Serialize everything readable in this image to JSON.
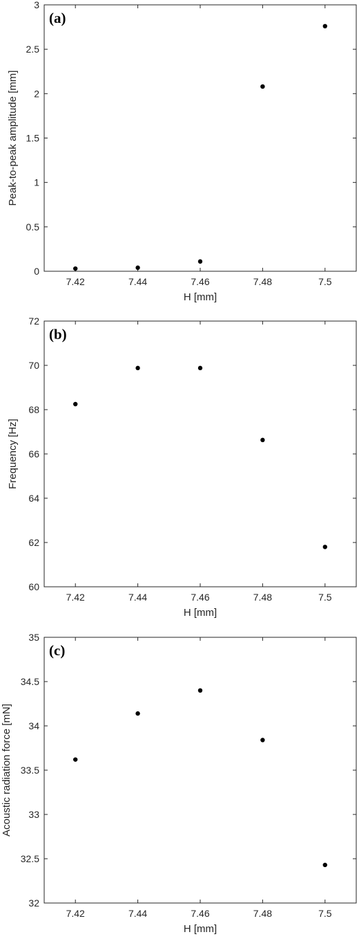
{
  "chart_data": [
    {
      "type": "scatter",
      "panel_label": "(a)",
      "xlabel": "H [mm]",
      "ylabel": "Peak-to-peak amplitude [mm]",
      "xlim": [
        7.41,
        7.51
      ],
      "ylim": [
        0,
        3
      ],
      "xticks": [
        7.42,
        7.44,
        7.46,
        7.48,
        7.5
      ],
      "xtick_labels": [
        "7.42",
        "7.44",
        "7.46",
        "7.48",
        "7.5"
      ],
      "yticks": [
        0,
        0.5,
        1,
        1.5,
        2,
        2.5,
        3
      ],
      "ytick_labels": [
        "0",
        "0.5",
        "1",
        "1.5",
        "2",
        "2.5",
        "3"
      ],
      "grid": false,
      "x": [
        7.42,
        7.44,
        7.46,
        7.48,
        7.5
      ],
      "y": [
        0.03,
        0.04,
        0.11,
        2.08,
        2.76
      ]
    },
    {
      "type": "scatter",
      "panel_label": "(b)",
      "xlabel": "H [mm]",
      "ylabel": "Frequency [Hz]",
      "xlim": [
        7.41,
        7.51
      ],
      "ylim": [
        60,
        72
      ],
      "xticks": [
        7.42,
        7.44,
        7.46,
        7.48,
        7.5
      ],
      "xtick_labels": [
        "7.42",
        "7.44",
        "7.46",
        "7.48",
        "7.5"
      ],
      "yticks": [
        60,
        62,
        64,
        66,
        68,
        70,
        72
      ],
      "ytick_labels": [
        "60",
        "62",
        "64",
        "66",
        "68",
        "70",
        "72"
      ],
      "grid": false,
      "x": [
        7.42,
        7.44,
        7.46,
        7.48,
        7.5
      ],
      "y": [
        68.25,
        69.88,
        69.88,
        66.63,
        61.8
      ]
    },
    {
      "type": "scatter",
      "panel_label": "(c)",
      "xlabel": "H [mm]",
      "ylabel": "Acoustic radiation force [mN]",
      "xlim": [
        7.41,
        7.51
      ],
      "ylim": [
        32,
        35
      ],
      "xticks": [
        7.42,
        7.44,
        7.46,
        7.48,
        7.5
      ],
      "xtick_labels": [
        "7.42",
        "7.44",
        "7.46",
        "7.48",
        "7.5"
      ],
      "yticks": [
        32,
        32.5,
        33,
        33.5,
        34,
        34.5,
        35
      ],
      "ytick_labels": [
        "32",
        "32.5",
        "33",
        "33.5",
        "34",
        "34.5",
        "35"
      ],
      "grid": false,
      "x": [
        7.42,
        7.44,
        7.46,
        7.48,
        7.5
      ],
      "y": [
        33.62,
        34.14,
        34.4,
        33.84,
        32.43
      ]
    }
  ],
  "colors": {
    "marker": "#000000",
    "axis": "#262626",
    "background": "#ffffff"
  }
}
